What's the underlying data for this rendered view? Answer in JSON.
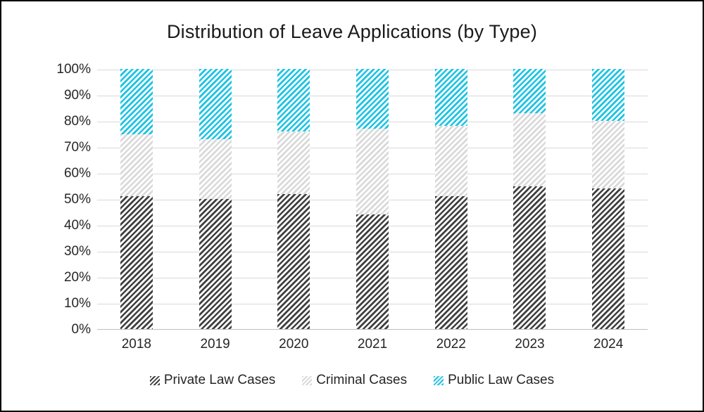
{
  "window": {
    "background": "#ffffff",
    "border_color": "#000000"
  },
  "chart_data": {
    "type": "bar",
    "subtype": "stacked-100-percent",
    "title": "Distribution of Leave Applications (by Type)",
    "categories": [
      "2018",
      "2019",
      "2020",
      "2021",
      "2022",
      "2023",
      "2024"
    ],
    "series": [
      {
        "name": "Private Law Cases",
        "color": "#3f3f3f",
        "pattern": "diagonal-hatch",
        "values": [
          51,
          50,
          52,
          44,
          51,
          55,
          54
        ]
      },
      {
        "name": "Criminal Cases",
        "color": "#d9d9d9",
        "pattern": "diagonal-hatch",
        "values": [
          24,
          23,
          24,
          33,
          27,
          28,
          26
        ]
      },
      {
        "name": "Public Law Cases",
        "color": "#1cc3e3",
        "pattern": "diagonal-hatch",
        "values": [
          25,
          27,
          24,
          23,
          22,
          17,
          20
        ]
      }
    ],
    "xlabel": "",
    "ylabel": "",
    "y_axis": {
      "min": 0,
      "max": 100,
      "tick_step": 10,
      "ticks": [
        "100%",
        "90%",
        "80%",
        "70%",
        "60%",
        "50%",
        "40%",
        "30%",
        "20%",
        "10%",
        "0%"
      ],
      "grid": true,
      "gridline_color": "#d9d9d9",
      "axis_line_color": "#bfbfbf"
    },
    "legend": {
      "position": "bottom",
      "entries": [
        "Private Law Cases",
        "Criminal Cases",
        "Public Law Cases"
      ]
    }
  }
}
